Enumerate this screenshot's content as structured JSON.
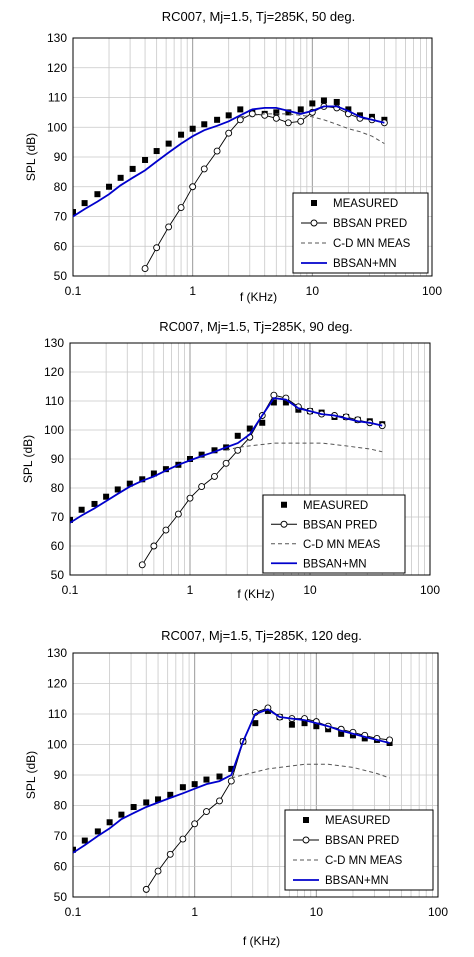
{
  "legend_labels": [
    "MEASURED",
    "BBSAN PRED",
    "C-D MN MEAS",
    "BBSAN+MN"
  ],
  "colors": {
    "measured": "#000000",
    "bbsan_pred": "#000000",
    "cdmn": "#555555",
    "bbsan_mn": "#0000cc",
    "grid": "#c8c8c8"
  },
  "chart_data": [
    {
      "type": "line",
      "title": "RC007, Mj=1.5, Tj=285K, 50 deg.",
      "xlabel": "f (KHz)",
      "ylabel": "SPL (dB)",
      "xscale": "log",
      "xlim": [
        0.1,
        100
      ],
      "ylim": [
        50,
        130
      ],
      "xticks": [
        "0.1",
        "1",
        "10",
        "100"
      ],
      "yticks": [
        "50",
        "60",
        "70",
        "80",
        "90",
        "100",
        "110",
        "120",
        "130"
      ],
      "grid": true,
      "legend_position": "bottom-right",
      "series": [
        {
          "name": "MEASURED",
          "style": "square-markers",
          "x": [
            0.1,
            0.125,
            0.16,
            0.2,
            0.25,
            0.315,
            0.4,
            0.5,
            0.63,
            0.8,
            1.0,
            1.25,
            1.6,
            2.0,
            2.5,
            3.15,
            4.0,
            5.0,
            6.3,
            8.0,
            10.0,
            12.5,
            16.0,
            20.0,
            25.0,
            31.5,
            40.0
          ],
          "y": [
            71.5,
            74.5,
            77.5,
            80,
            83,
            86,
            89,
            92,
            94.5,
            97.5,
            99.5,
            101,
            102.5,
            104,
            106,
            105,
            104.5,
            105,
            105,
            106,
            108,
            109,
            108.5,
            106,
            104,
            103.5,
            102.5
          ]
        },
        {
          "name": "BBSAN PRED",
          "style": "line-open-circles",
          "x": [
            0.4,
            0.5,
            0.63,
            0.8,
            1.0,
            1.25,
            1.6,
            2.0,
            2.5,
            3.15,
            4.0,
            5.0,
            6.3,
            8.0,
            10.0,
            12.5,
            16.0,
            20.0,
            25.0,
            31.5,
            40.0
          ],
          "y": [
            52.5,
            59.5,
            66.5,
            73,
            80,
            86,
            92,
            98,
            102.5,
            104.5,
            104,
            103,
            101.5,
            102,
            105,
            107,
            106.5,
            104.5,
            103,
            102.5,
            101.5
          ]
        },
        {
          "name": "C-D MN MEAS",
          "style": "dashed",
          "x": [
            2.5,
            3.15,
            4.0,
            5.0,
            6.3,
            8.0,
            10.0,
            12.5,
            16.0,
            20.0,
            25.0,
            31.5,
            40.0
          ],
          "y": [
            103.5,
            104,
            104.5,
            104.5,
            104.5,
            104,
            103.5,
            102.5,
            101,
            99.5,
            98.5,
            97,
            94.5
          ]
        },
        {
          "name": "BBSAN+MN",
          "style": "solid-blue",
          "x": [
            0.1,
            0.125,
            0.16,
            0.2,
            0.25,
            0.315,
            0.4,
            0.5,
            0.63,
            0.8,
            1.0,
            1.25,
            1.6,
            2.0,
            2.5,
            3.15,
            4.0,
            5.0,
            6.3,
            8.0,
            10.0,
            12.5,
            16.0,
            20.0,
            25.0,
            31.5,
            40.0
          ],
          "y": [
            70,
            72.5,
            75,
            77.5,
            80.5,
            83,
            85.5,
            88.5,
            91.5,
            94.5,
            97,
            99,
            100.5,
            102,
            104,
            106,
            106.5,
            106.5,
            105.5,
            104.5,
            105.5,
            107,
            107,
            105.5,
            103.5,
            102.5,
            101.5
          ]
        }
      ]
    },
    {
      "type": "line",
      "title": "RC007, Mj=1.5, Tj=285K, 90 deg.",
      "xlabel": "f (KHz)",
      "ylabel": "SPL (dB)",
      "xscale": "log",
      "xlim": [
        0.1,
        100
      ],
      "ylim": [
        50,
        130
      ],
      "xticks": [
        "0.1",
        "1",
        "10",
        "100"
      ],
      "yticks": [
        "50",
        "60",
        "70",
        "80",
        "90",
        "100",
        "110",
        "120",
        "130"
      ],
      "grid": true,
      "legend_position": "bottom-right",
      "series": [
        {
          "name": "MEASURED",
          "style": "square-markers",
          "x": [
            0.1,
            0.125,
            0.16,
            0.2,
            0.25,
            0.315,
            0.4,
            0.5,
            0.63,
            0.8,
            1.0,
            1.25,
            1.6,
            2.0,
            2.5,
            3.15,
            4.0,
            5.0,
            6.3,
            8.0,
            10.0,
            12.5,
            16.0,
            20.0,
            25.0,
            31.5,
            40.0
          ],
          "y": [
            69,
            72.5,
            74.5,
            77,
            79.5,
            81.5,
            83,
            85,
            86.5,
            88,
            90,
            91.5,
            93,
            94,
            98,
            100.5,
            102.5,
            109.5,
            109.5,
            107,
            106.5,
            106,
            104.5,
            104.5,
            103.5,
            103,
            102
          ]
        },
        {
          "name": "BBSAN PRED",
          "style": "line-open-circles",
          "x": [
            0.4,
            0.5,
            0.63,
            0.8,
            1.0,
            1.25,
            1.6,
            2.0,
            2.5,
            3.15,
            4.0,
            5.0,
            6.3,
            8.0,
            10.0,
            12.5,
            16.0,
            20.0,
            25.0,
            31.5,
            40.0
          ],
          "y": [
            53.5,
            60,
            65.5,
            71,
            76.5,
            80.5,
            84,
            88.5,
            93,
            97.5,
            105,
            112,
            111,
            108,
            106.5,
            105.5,
            105,
            104.5,
            103.5,
            102.5,
            101.5
          ]
        },
        {
          "name": "C-D MN MEAS",
          "style": "dashed",
          "x": [
            2.0,
            2.5,
            3.15,
            4.0,
            5.0,
            6.3,
            8.0,
            10.0,
            12.5,
            16.0,
            20.0,
            25.0,
            31.5,
            40.0
          ],
          "y": [
            93,
            94,
            94.5,
            95,
            95.5,
            95.5,
            95.5,
            95.5,
            95.5,
            95,
            94.5,
            94,
            93.5,
            92.5
          ]
        },
        {
          "name": "BBSAN+MN",
          "style": "solid-blue",
          "x": [
            0.1,
            0.125,
            0.16,
            0.2,
            0.25,
            0.315,
            0.4,
            0.5,
            0.63,
            0.8,
            1.0,
            1.25,
            1.6,
            2.0,
            2.5,
            3.15,
            4.0,
            5.0,
            6.3,
            8.0,
            10.0,
            12.5,
            16.0,
            20.0,
            25.0,
            31.5,
            40.0
          ],
          "y": [
            68,
            70.5,
            73,
            75.5,
            78,
            80.5,
            82.5,
            84,
            86,
            88,
            89.5,
            91,
            92.5,
            94,
            95.5,
            98.5,
            105,
            111,
            110.5,
            107.5,
            106.5,
            105.5,
            105,
            104,
            103,
            102.5,
            101.5
          ]
        }
      ]
    },
    {
      "type": "line",
      "title": "RC007, Mj=1.5, Tj=285K, 120 deg.",
      "xlabel": "f (KHz)",
      "ylabel": "SPL (dB)",
      "xscale": "log",
      "xlim": [
        0.1,
        100
      ],
      "ylim": [
        50,
        130
      ],
      "xticks": [
        "0.1",
        "1",
        "10",
        "100"
      ],
      "yticks": [
        "50",
        "60",
        "70",
        "80",
        "90",
        "100",
        "110",
        "120",
        "130"
      ],
      "grid": true,
      "legend_position": "bottom-right",
      "series": [
        {
          "name": "MEASURED",
          "style": "square-markers",
          "x": [
            0.1,
            0.125,
            0.16,
            0.2,
            0.25,
            0.315,
            0.4,
            0.5,
            0.63,
            0.8,
            1.0,
            1.25,
            1.6,
            2.0,
            2.5,
            3.15,
            4.0,
            5.0,
            6.3,
            8.0,
            10.0,
            12.5,
            16.0,
            20.0,
            25.0,
            31.5,
            40.0
          ],
          "y": [
            65.5,
            68.5,
            71.5,
            74.5,
            77,
            79.5,
            81,
            82,
            83.5,
            86,
            87,
            88.5,
            89.5,
            92,
            101,
            107,
            111,
            109,
            106.5,
            107,
            106,
            105,
            103.5,
            103,
            102,
            101.5,
            100.5
          ]
        },
        {
          "name": "BBSAN PRED",
          "style": "line-open-circles",
          "x": [
            0.4,
            0.5,
            0.63,
            0.8,
            1.0,
            1.25,
            1.6,
            2.0,
            2.5,
            3.15,
            4.0,
            5.0,
            6.3,
            8.0,
            10.0,
            12.5,
            16.0,
            20.0,
            25.0,
            31.5,
            40.0
          ],
          "y": [
            52.5,
            58.5,
            64,
            69,
            74,
            78,
            81.5,
            88,
            101,
            110.5,
            112,
            109,
            108.5,
            108.5,
            107.5,
            106,
            105,
            104,
            103,
            102,
            101.5
          ]
        },
        {
          "name": "C-D MN MEAS",
          "style": "dashed",
          "x": [
            2.0,
            2.5,
            3.15,
            4.0,
            5.0,
            6.3,
            8.0,
            10.0,
            12.5,
            16.0,
            20.0,
            25.0,
            31.5,
            40.0
          ],
          "y": [
            89,
            90,
            91,
            92,
            92.5,
            93,
            93.5,
            93.5,
            93.5,
            93,
            92.5,
            91.5,
            90.5,
            89
          ]
        },
        {
          "name": "BBSAN+MN",
          "style": "solid-blue",
          "x": [
            0.1,
            0.125,
            0.16,
            0.2,
            0.25,
            0.315,
            0.4,
            0.5,
            0.63,
            0.8,
            1.0,
            1.25,
            1.6,
            2.0,
            2.5,
            3.15,
            4.0,
            5.0,
            6.3,
            8.0,
            10.0,
            12.5,
            16.0,
            20.0,
            25.0,
            31.5,
            40.0
          ],
          "y": [
            64.5,
            67,
            70,
            72.5,
            75.5,
            77.5,
            79.5,
            81,
            82.5,
            84,
            85.5,
            87,
            88,
            90,
            101,
            110,
            111.5,
            109,
            108.5,
            108,
            107,
            106,
            104.5,
            103.5,
            102.5,
            101.5,
            100.5
          ]
        }
      ]
    }
  ]
}
